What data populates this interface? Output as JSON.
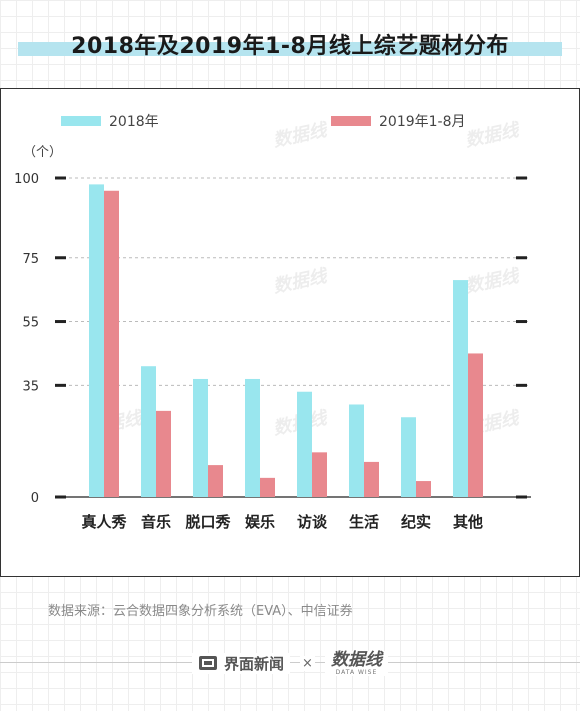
{
  "title": "2018年及2019年1-8月线上综艺题材分布",
  "source": "数据来源：云合数据四象分析系统（EVA）、中信证券",
  "footer": {
    "brand1": "界面新闻",
    "times": "×",
    "brand2_cn": "数据线",
    "brand2_en": "DATA WISE"
  },
  "watermark": "数据线",
  "colors": {
    "s2018": "#99e6ee",
    "s2019": "#e8888e",
    "grid": "#bbbbbb",
    "axis": "#222222"
  },
  "chart_data": {
    "type": "bar",
    "title": "2018年及2019年1-8月线上综艺题材分布",
    "ylabel": "（个）",
    "ylim": [
      0,
      100
    ],
    "yticks": [
      0,
      35,
      55,
      75,
      100
    ],
    "categories": [
      "真人秀",
      "音乐",
      "脱口秀",
      "娱乐",
      "访谈",
      "生活",
      "纪实",
      "其他"
    ],
    "series": [
      {
        "name": "2018年",
        "values": [
          98,
          41,
          37,
          37,
          33,
          29,
          25,
          68
        ]
      },
      {
        "name": "2019年1-8月",
        "values": [
          96,
          27,
          10,
          6,
          14,
          11,
          5,
          45
        ]
      }
    ],
    "legend": "top",
    "grid": true
  }
}
